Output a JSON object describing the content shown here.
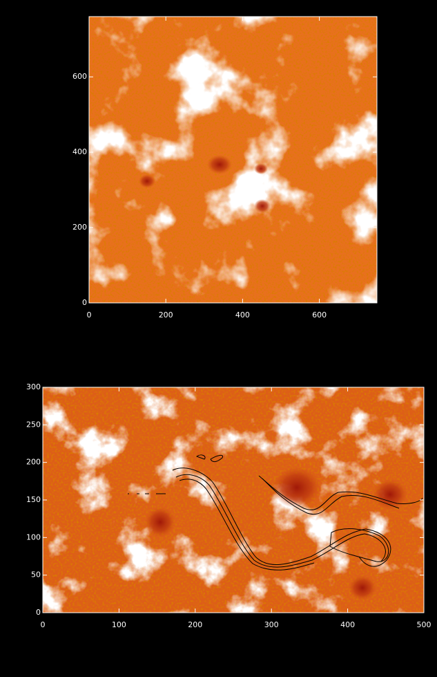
{
  "chart_data": [
    {
      "type": "image",
      "xlim": [
        0,
        750
      ],
      "ylim": [
        0,
        760
      ],
      "xticks": [
        0,
        200,
        400,
        600
      ],
      "yticks": [
        0,
        200,
        400,
        600
      ]
    },
    {
      "type": "image",
      "xlim": [
        0,
        500
      ],
      "ylim": [
        0,
        300
      ],
      "xticks": [
        0,
        100,
        200,
        300,
        400,
        500
      ],
      "yticks": [
        0,
        50,
        100,
        150,
        200,
        250,
        300
      ]
    }
  ]
}
